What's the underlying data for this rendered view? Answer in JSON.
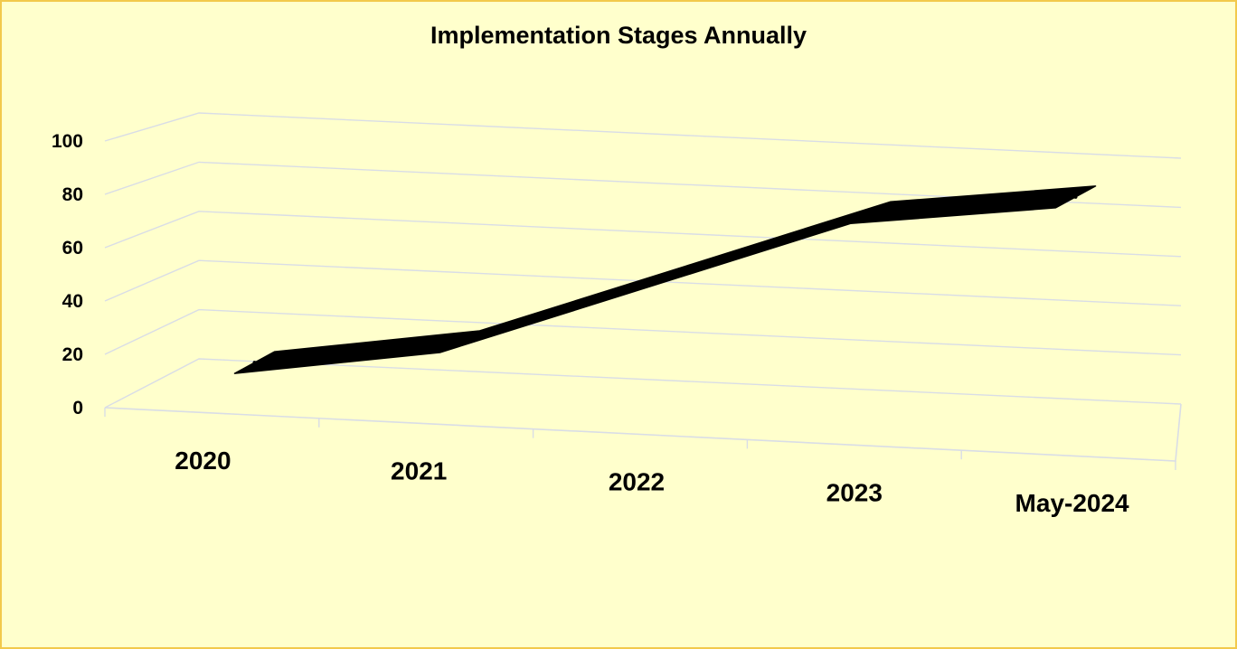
{
  "chart_data": {
    "type": "line",
    "title": "Implementation Stages Annually",
    "xlabel": "",
    "ylabel": "",
    "categories": [
      "2020",
      "2021",
      "2022",
      "2023",
      "May-2024"
    ],
    "series": [
      {
        "values": [
          10,
          22,
          51,
          80,
          90
        ]
      }
    ],
    "ylim": [
      0,
      100
    ],
    "y_ticks": [
      "0",
      "20",
      "40",
      "60",
      "80",
      "100"
    ],
    "grid": true,
    "legend": "none",
    "style": "3d-ribbon",
    "colors": {
      "background": "#ffffcc",
      "border": "#f2c94c",
      "series": "#000000",
      "grid": "#d9dde6"
    }
  }
}
